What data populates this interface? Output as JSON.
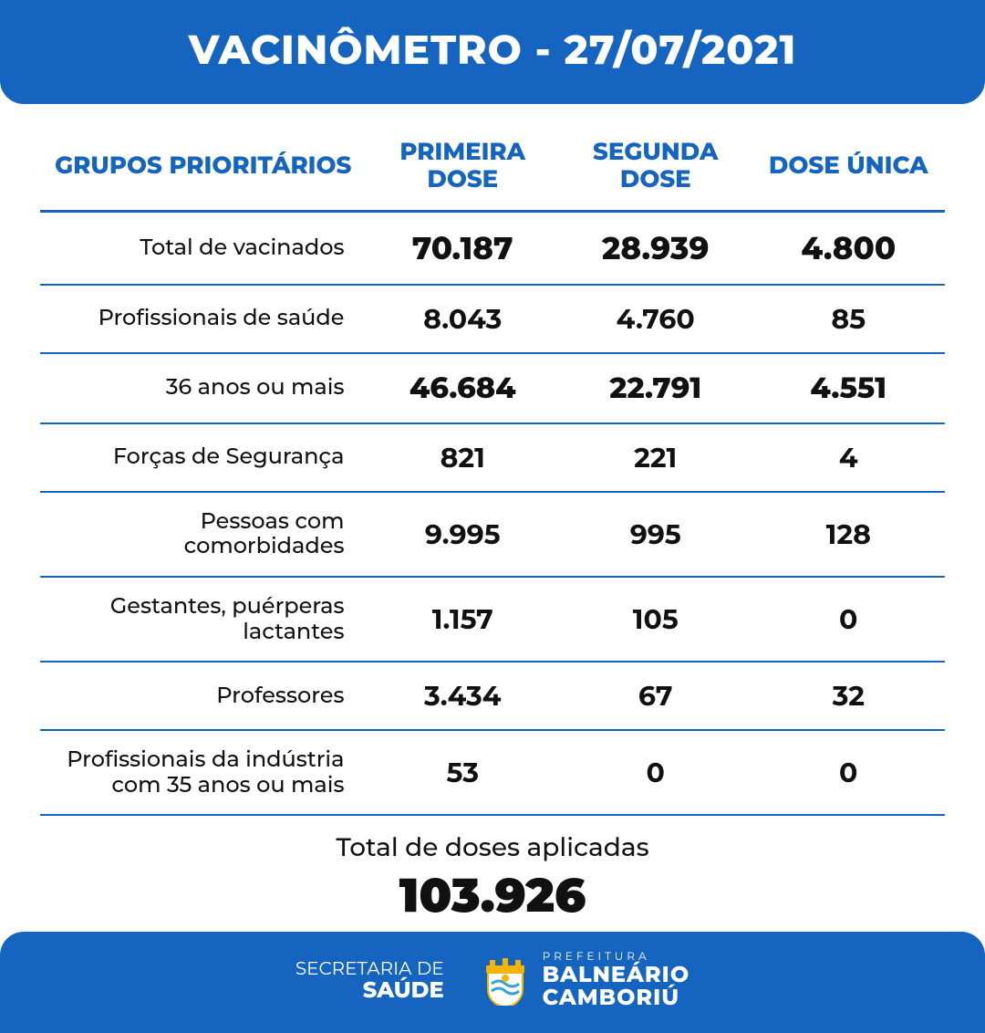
{
  "colors": {
    "brand_blue": "#1565c0",
    "text": "#111111",
    "white": "#ffffff"
  },
  "header": {
    "title": "VACINÔMETRO - 27/07/2021"
  },
  "table": {
    "columns": [
      "GRUPOS PRIORITÁRIOS",
      "PRIMEIRA DOSE",
      "SEGUNDA DOSE",
      "DOSE ÚNICA"
    ],
    "rows": [
      {
        "label": "Total de vacinados",
        "d1": "70.187",
        "d2": "28.939",
        "d3": "4.800",
        "emph": true
      },
      {
        "label": "Profissionais de saúde",
        "d1": "8.043",
        "d2": "4.760",
        "d3": "85"
      },
      {
        "label": "36 anos ou mais",
        "d1": "46.684",
        "d2": "22.791",
        "d3": "4.551",
        "emph": true
      },
      {
        "label": "Forças de Segurança",
        "d1": "821",
        "d2": "221",
        "d3": "4"
      },
      {
        "label": "Pessoas com comorbidades",
        "d1": "9.995",
        "d2": "995",
        "d3": "128"
      },
      {
        "label": "Gestantes, puérperas lactantes",
        "d1": "1.157",
        "d2": "105",
        "d3": "0"
      },
      {
        "label": "Professores",
        "d1": "3.434",
        "d2": "67",
        "d3": "32"
      },
      {
        "label": "Profissionais da indústria com 35 anos ou mais",
        "d1": "53",
        "d2": "0",
        "d3": "0"
      }
    ]
  },
  "totals": {
    "caption": "Total de doses aplicadas",
    "value": "103.926"
  },
  "footer": {
    "secretaria_l1": "SECRETARIA DE",
    "secretaria_l2": "SAÚDE",
    "brand_l1": "PREFEITURA",
    "brand_l2": "BALNEÁRIO",
    "brand_l3": "CAMBORIÚ"
  }
}
